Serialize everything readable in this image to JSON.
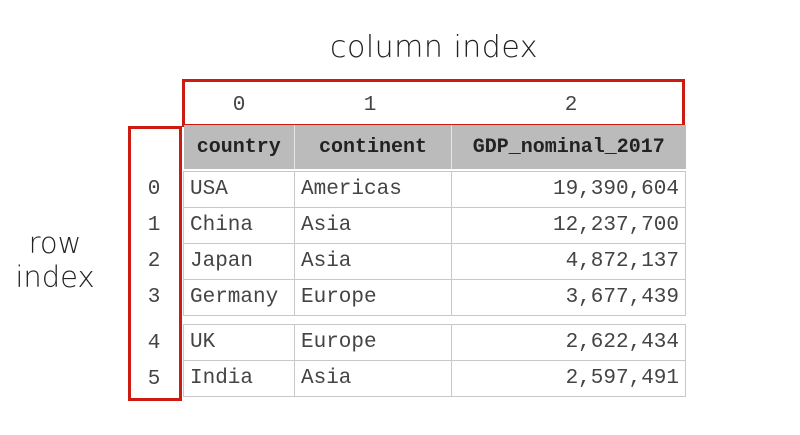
{
  "labels": {
    "column_index": "column index",
    "row_index_line1": "row",
    "row_index_line2": "index"
  },
  "column_index_values": [
    "0",
    "1",
    "2"
  ],
  "row_index_values": [
    "0",
    "1",
    "2",
    "3",
    "4",
    "5"
  ],
  "table": {
    "headers": [
      "country",
      "continent",
      "GDP_nominal_2017"
    ],
    "rows": [
      [
        "USA",
        "Americas",
        "19,390,604"
      ],
      [
        "China",
        "Asia",
        "12,237,700"
      ],
      [
        "Japan",
        "Asia",
        "4,872,137"
      ],
      [
        "Germany",
        "Europe",
        "3,677,439"
      ],
      [
        "UK",
        "Europe",
        "2,622,434"
      ],
      [
        "India",
        "Asia",
        "2,597,491"
      ]
    ]
  },
  "colors": {
    "highlight_border": "#cc1b10",
    "header_background": "#bbbbbb",
    "cell_border": "#c8c8c8"
  }
}
